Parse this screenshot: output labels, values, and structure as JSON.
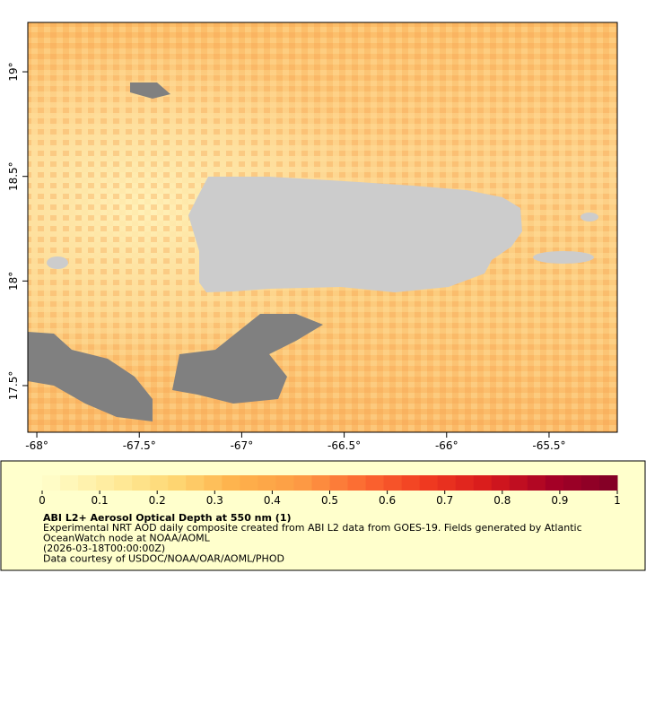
{
  "map": {
    "xlim": [
      -68.044,
      -65.167
    ],
    "ylim": [
      17.277,
      19.236
    ],
    "xticks": [
      {
        "value": -68,
        "label": "-68°"
      },
      {
        "value": -67.5,
        "label": "-67.5°"
      },
      {
        "value": -67,
        "label": "-67°"
      },
      {
        "value": -66.5,
        "label": "-66.5°"
      },
      {
        "value": -66,
        "label": "-66°"
      },
      {
        "value": -65.5,
        "label": "-65.5°"
      }
    ],
    "yticks": [
      {
        "value": 17.5,
        "label": "17.5°"
      },
      {
        "value": 18,
        "label": "18°"
      },
      {
        "value": 18.5,
        "label": "18.5°"
      },
      {
        "value": 19,
        "label": "19°"
      }
    ]
  },
  "colorbar": {
    "lim": [
      0,
      1
    ],
    "ticks": [
      0,
      0.1,
      0.2,
      0.3,
      0.4,
      0.5,
      0.6,
      0.7,
      0.8,
      0.9,
      1
    ],
    "levels": 32,
    "colors": [
      "#ffffcc",
      "#ffeda0",
      "#fed976",
      "#feb24c",
      "#fd9d45",
      "#fc6a32",
      "#f03b20",
      "#d7191c",
      "#a50026",
      "#800026"
    ]
  },
  "legend": {
    "title": "ABI L2+ Aerosol Optical Depth at 550 nm (1)",
    "lines": [
      "Experimental NRT AOD daily composite created from ABI L2 data from GOES-19. Fields generated by Atlantic",
      "OceanWatch node at NOAA/AOML",
      "(2026-03-18T00:00:00Z)",
      "Data courtesy of USDOC/NOAA/OAR/AOML/PHOD"
    ]
  }
}
